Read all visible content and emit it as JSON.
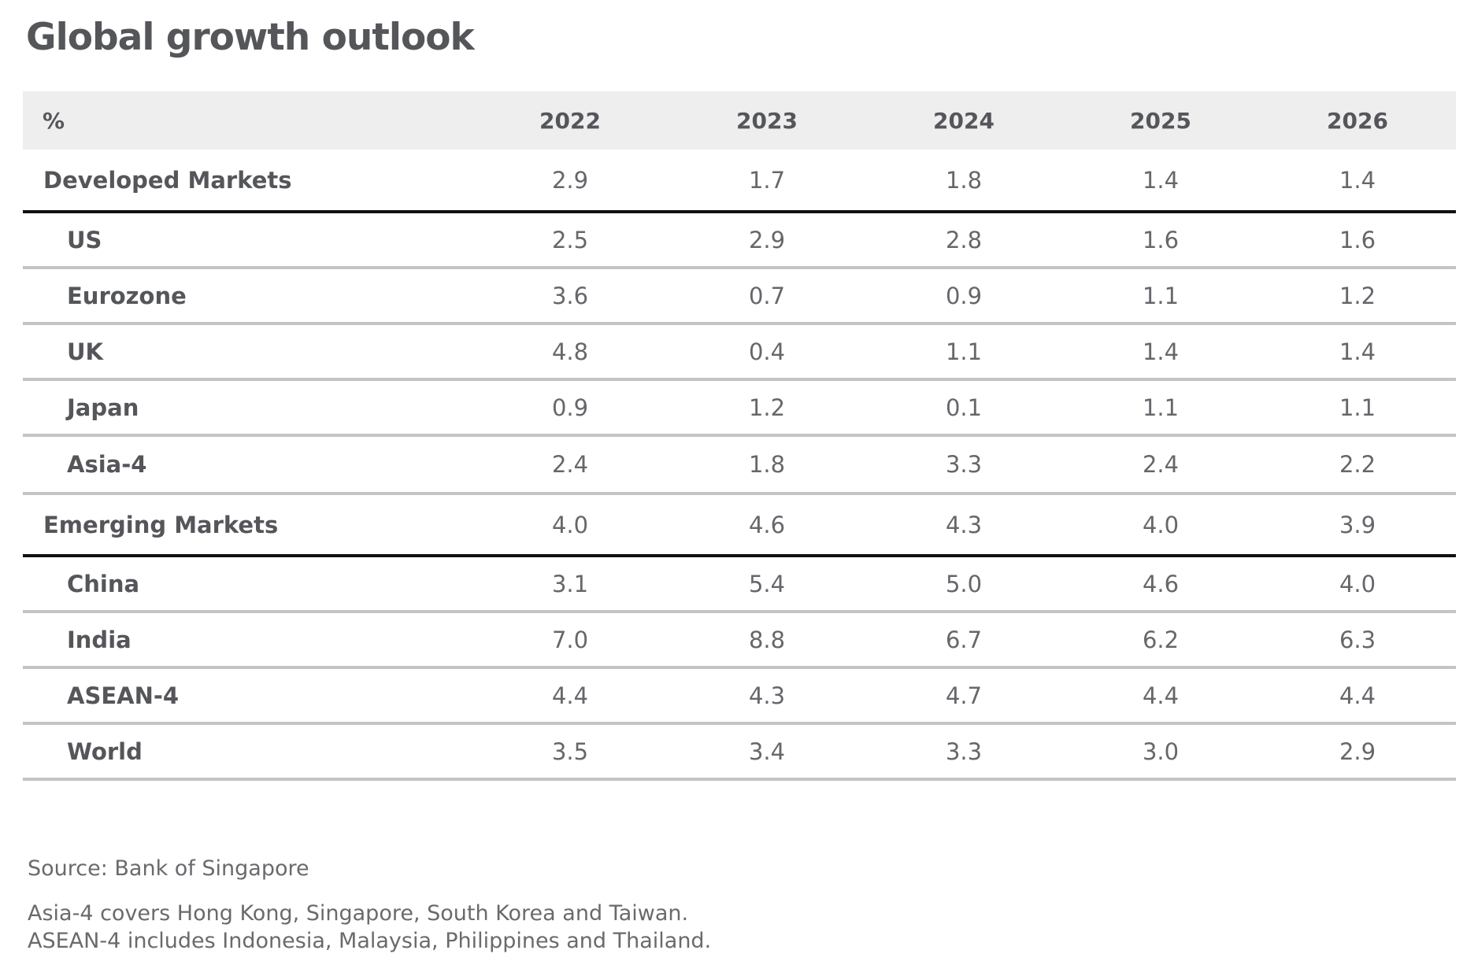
{
  "title": "Global growth outlook",
  "chart_data": {
    "type": "table",
    "title": "Global growth outlook",
    "unit_header": "%",
    "columns": [
      "2022",
      "2023",
      "2024",
      "2025",
      "2026"
    ],
    "rows": [
      {
        "label": "Developed Markets",
        "level": "group",
        "values": [
          "2.9",
          "1.7",
          "1.8",
          "1.4",
          "1.4"
        ]
      },
      {
        "label": "US",
        "level": "sub",
        "values": [
          "2.5",
          "2.9",
          "2.8",
          "1.6",
          "1.6"
        ]
      },
      {
        "label": "Eurozone",
        "level": "sub",
        "values": [
          "3.6",
          "0.7",
          "0.9",
          "1.1",
          "1.2"
        ]
      },
      {
        "label": "UK",
        "level": "sub",
        "values": [
          "4.8",
          "0.4",
          "1.1",
          "1.4",
          "1.4"
        ]
      },
      {
        "label": "Japan",
        "level": "sub",
        "values": [
          "0.9",
          "1.2",
          "0.1",
          "1.1",
          "1.1"
        ]
      },
      {
        "label": "Asia-4",
        "level": "sub",
        "values": [
          "2.4",
          "1.8",
          "3.3",
          "2.4",
          "2.2"
        ]
      },
      {
        "label": "Emerging Markets",
        "level": "group",
        "values": [
          "4.0",
          "4.6",
          "4.3",
          "4.0",
          "3.9"
        ]
      },
      {
        "label": "China",
        "level": "sub",
        "values": [
          "3.1",
          "5.4",
          "5.0",
          "4.6",
          "4.0"
        ]
      },
      {
        "label": "India",
        "level": "sub",
        "values": [
          "7.0",
          "8.8",
          "6.7",
          "6.2",
          "6.3"
        ]
      },
      {
        "label": "ASEAN-4",
        "level": "sub",
        "values": [
          "4.4",
          "4.3",
          "4.7",
          "4.4",
          "4.4"
        ]
      },
      {
        "label": "World",
        "level": "sub",
        "values": [
          "3.5",
          "3.4",
          "3.3",
          "3.0",
          "2.9"
        ]
      }
    ],
    "colors": {
      "header_background": "#eeeeee",
      "group_divider": "#111111",
      "row_divider": "#c4c4c4",
      "text": "#55565a"
    }
  },
  "footer": {
    "source": "Source: Bank of Singapore",
    "notes": [
      "Asia-4 covers Hong Kong, Singapore, South Korea and Taiwan.",
      "ASEAN-4 includes Indonesia, Malaysia, Philippines and Thailand."
    ]
  }
}
